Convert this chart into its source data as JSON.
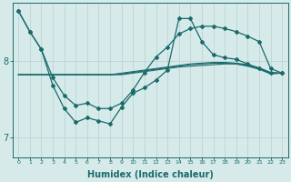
{
  "bg_color": "#d6eaea",
  "line_color": "#1a6b6b",
  "grid_color": "#b8d0d0",
  "xlabel": "Humidex (Indice chaleur)",
  "xlabel_fontsize": 7,
  "yticks": [
    7,
    8
  ],
  "xlim": [
    -0.5,
    23.5
  ],
  "ylim": [
    6.75,
    8.75
  ],
  "x_vals": [
    0,
    1,
    2,
    3,
    4,
    5,
    6,
    7,
    8,
    9,
    10,
    11,
    12,
    13,
    14,
    15,
    16,
    17,
    18,
    19,
    20,
    21,
    22,
    23
  ],
  "line_top": [
    8.65,
    8.38,
    8.15,
    7.78,
    7.55,
    7.42,
    7.45,
    7.38,
    7.38,
    7.45,
    7.62,
    7.85,
    8.05,
    8.18,
    8.35,
    8.42,
    8.45,
    8.45,
    8.42,
    8.38,
    8.32,
    8.25,
    7.9,
    7.84
  ],
  "line_wavy": [
    8.65,
    8.38,
    8.15,
    7.68,
    7.38,
    7.2,
    7.26,
    7.22,
    7.18,
    7.4,
    7.58,
    7.65,
    7.75,
    7.88,
    8.55,
    8.55,
    8.25,
    8.08,
    8.04,
    8.02,
    7.96,
    7.9,
    7.84,
    7.84
  ],
  "flat1": [
    7.82,
    7.82,
    7.82,
    7.82,
    7.82,
    7.82,
    7.82,
    7.82,
    7.82,
    7.84,
    7.86,
    7.88,
    7.9,
    7.92,
    7.94,
    7.96,
    7.97,
    7.98,
    7.98,
    7.97,
    7.95,
    7.91,
    7.85,
    7.84
  ],
  "flat2": [
    7.82,
    7.82,
    7.82,
    7.82,
    7.82,
    7.82,
    7.82,
    7.82,
    7.82,
    7.83,
    7.85,
    7.87,
    7.89,
    7.91,
    7.93,
    7.95,
    7.96,
    7.97,
    7.97,
    7.96,
    7.94,
    7.9,
    7.84,
    7.84
  ],
  "flat3": [
    7.82,
    7.82,
    7.82,
    7.82,
    7.82,
    7.82,
    7.82,
    7.82,
    7.82,
    7.82,
    7.84,
    7.86,
    7.88,
    7.9,
    7.92,
    7.93,
    7.94,
    7.95,
    7.96,
    7.96,
    7.93,
    7.89,
    7.83,
    7.84
  ]
}
